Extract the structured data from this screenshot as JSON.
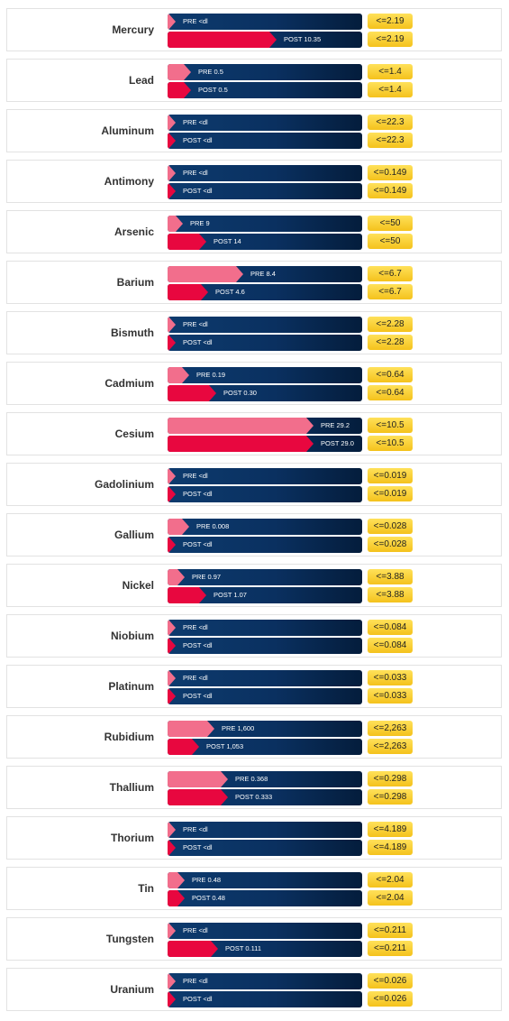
{
  "chart_data": {
    "type": "bar",
    "orientation": "horizontal",
    "series": [
      {
        "name": "PRE"
      },
      {
        "name": "POST"
      }
    ],
    "colors": {
      "pre_fill": "#f26e8c",
      "post_fill": "#e8073f",
      "track": "#0a3060",
      "limit_badge": "#f4c21c"
    },
    "rows": [
      {
        "element": "Mercury",
        "pre_label": "PRE <dl",
        "post_label": "POST 10.35",
        "pre_frac": 0.0,
        "post_frac": 0.56,
        "limit_pre": "<=2.19",
        "limit_post": "<=2.19"
      },
      {
        "element": "Lead",
        "pre_label": "PRE 0.5",
        "post_label": "POST 0.5",
        "pre_frac": 0.12,
        "post_frac": 0.12,
        "limit_pre": "<=1.4",
        "limit_post": "<=1.4"
      },
      {
        "element": "Aluminum",
        "pre_label": "PRE <dl",
        "post_label": "POST <dl",
        "pre_frac": 0.0,
        "post_frac": 0.0,
        "limit_pre": "<=22.3",
        "limit_post": "<=22.3"
      },
      {
        "element": "Antimony",
        "pre_label": "PRE <dl",
        "post_label": "POST <dl",
        "pre_frac": 0.0,
        "post_frac": 0.0,
        "limit_pre": "<=0.149",
        "limit_post": "<=0.149"
      },
      {
        "element": "Arsenic",
        "pre_label": "PRE 9",
        "post_label": "POST 14",
        "pre_frac": 0.08,
        "post_frac": 0.2,
        "limit_pre": "<=50",
        "limit_post": "<=50"
      },
      {
        "element": "Barium",
        "pre_label": "PRE 8.4",
        "post_label": "POST 4.6",
        "pre_frac": 0.39,
        "post_frac": 0.21,
        "limit_pre": "<=6.7",
        "limit_post": "<=6.7"
      },
      {
        "element": "Bismuth",
        "pre_label": "PRE <dl",
        "post_label": "POST <dl",
        "pre_frac": 0.0,
        "post_frac": 0.0,
        "limit_pre": "<=2.28",
        "limit_post": "<=2.28"
      },
      {
        "element": "Cadmium",
        "pre_label": "PRE 0.19",
        "post_label": "POST 0.30",
        "pre_frac": 0.11,
        "post_frac": 0.25,
        "limit_pre": "<=0.64",
        "limit_post": "<=0.64"
      },
      {
        "element": "Cesium",
        "pre_label": "PRE 29.2",
        "post_label": "POST 29.0",
        "pre_frac": 0.75,
        "post_frac": 0.75,
        "limit_pre": "<=10.5",
        "limit_post": "<=10.5"
      },
      {
        "element": "Gadolinium",
        "pre_label": "PRE <dl",
        "post_label": "POST <dl",
        "pre_frac": 0.0,
        "post_frac": 0.0,
        "limit_pre": "<=0.019",
        "limit_post": "<=0.019"
      },
      {
        "element": "Gallium",
        "pre_label": "PRE 0.008",
        "post_label": "POST <dl",
        "pre_frac": 0.11,
        "post_frac": 0.0,
        "limit_pre": "<=0.028",
        "limit_post": "<=0.028"
      },
      {
        "element": "Nickel",
        "pre_label": "PRE 0.97",
        "post_label": "POST 1.07",
        "pre_frac": 0.09,
        "post_frac": 0.2,
        "limit_pre": "<=3.88",
        "limit_post": "<=3.88"
      },
      {
        "element": "Niobium",
        "pre_label": "PRE <dl",
        "post_label": "POST <dl",
        "pre_frac": 0.0,
        "post_frac": 0.0,
        "limit_pre": "<=0.084",
        "limit_post": "<=0.084"
      },
      {
        "element": "Platinum",
        "pre_label": "PRE <dl",
        "post_label": "POST <dl",
        "pre_frac": 0.0,
        "post_frac": 0.0,
        "limit_pre": "<=0.033",
        "limit_post": "<=0.033"
      },
      {
        "element": "Rubidium",
        "pre_label": "PRE 1,600",
        "post_label": "POST 1,053",
        "pre_frac": 0.24,
        "post_frac": 0.16,
        "limit_pre": "<=2,263",
        "limit_post": "<=2,263"
      },
      {
        "element": "Thallium",
        "pre_label": "PRE 0.368",
        "post_label": "POST 0.333",
        "pre_frac": 0.31,
        "post_frac": 0.31,
        "limit_pre": "<=0.298",
        "limit_post": "<=0.298"
      },
      {
        "element": "Thorium",
        "pre_label": "PRE <dl",
        "post_label": "POST <dl",
        "pre_frac": 0.0,
        "post_frac": 0.0,
        "limit_pre": "<=4.189",
        "limit_post": "<=4.189"
      },
      {
        "element": "Tin",
        "pre_label": "PRE 0.48",
        "post_label": "POST 0.48",
        "pre_frac": 0.09,
        "post_frac": 0.09,
        "limit_pre": "<=2.04",
        "limit_post": "<=2.04"
      },
      {
        "element": "Tungsten",
        "pre_label": "PRE <dl",
        "post_label": "POST 0.111",
        "pre_frac": 0.0,
        "post_frac": 0.26,
        "limit_pre": "<=0.211",
        "limit_post": "<=0.211"
      },
      {
        "element": "Uranium",
        "pre_label": "PRE <dl",
        "post_label": "POST <dl",
        "pre_frac": 0.0,
        "post_frac": 0.0,
        "limit_pre": "<=0.026",
        "limit_post": "<=0.026"
      }
    ]
  }
}
